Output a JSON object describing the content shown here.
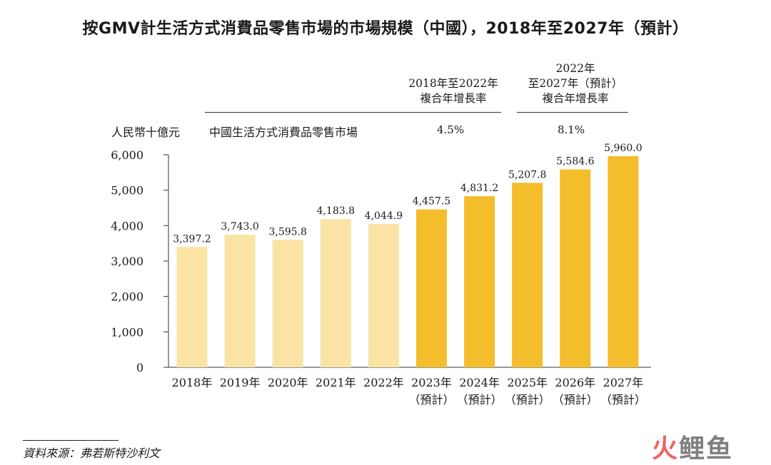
{
  "title": "按GMV計生活方式消費品零售市場的市場規模（中國），2018年至2027年（預計）",
  "header": {
    "cagr1_lines": [
      "2018年至2022年",
      "複合年增長率"
    ],
    "cagr2_lines": [
      "2022年",
      "至2027年（預計）",
      "複合年增長率"
    ],
    "unit_label": "人民幣十億元",
    "row_label": "中國生活方式消費品零售市場",
    "cagr1_value": "4.5%",
    "cagr2_value": "8.1%"
  },
  "chart_data": {
    "type": "bar",
    "title": "按GMV計生活方式消費品零售市場的市場規模（中國），2018年至2027年（預計）",
    "ylabel": "人民幣十億元",
    "xlabel": "",
    "ylim": [
      0,
      6000
    ],
    "yticks": [
      0,
      1000,
      2000,
      3000,
      4000,
      5000,
      6000
    ],
    "ytick_labels": [
      "0",
      "1,000",
      "2,000",
      "3,000",
      "4,000",
      "5,000",
      "6,000"
    ],
    "categories": [
      "2018年",
      "2019年",
      "2020年",
      "2021年",
      "2022年",
      "2023年",
      "2024年",
      "2025年",
      "2026年",
      "2027年"
    ],
    "category_sublabels": [
      "",
      "",
      "",
      "",
      "",
      "（預計）",
      "（預計）",
      "（預計）",
      "（預計）",
      "（預計）"
    ],
    "values": [
      3397.2,
      3743.0,
      3595.8,
      4183.8,
      4044.9,
      4457.5,
      4831.2,
      5207.8,
      5584.6,
      5960.0
    ],
    "value_labels": [
      "3,397.2",
      "3,743.0",
      "3,595.8",
      "4,183.8",
      "4,044.9",
      "4,457.5",
      "4,831.2",
      "5,207.8",
      "5,584.6",
      "5,960.0"
    ],
    "bar_colors": [
      "#fbe3a6",
      "#fbe3a6",
      "#fbe3a6",
      "#fbe3a6",
      "#fbe3a6",
      "#f4bd2c",
      "#f4bd2c",
      "#f4bd2c",
      "#f4bd2c",
      "#f4bd2c"
    ],
    "grid": false,
    "legend": "none"
  },
  "footer": {
    "source": "資料來源：弗若斯特沙利文"
  },
  "watermark": {
    "part1": "火",
    "part2": "鲤鱼"
  }
}
